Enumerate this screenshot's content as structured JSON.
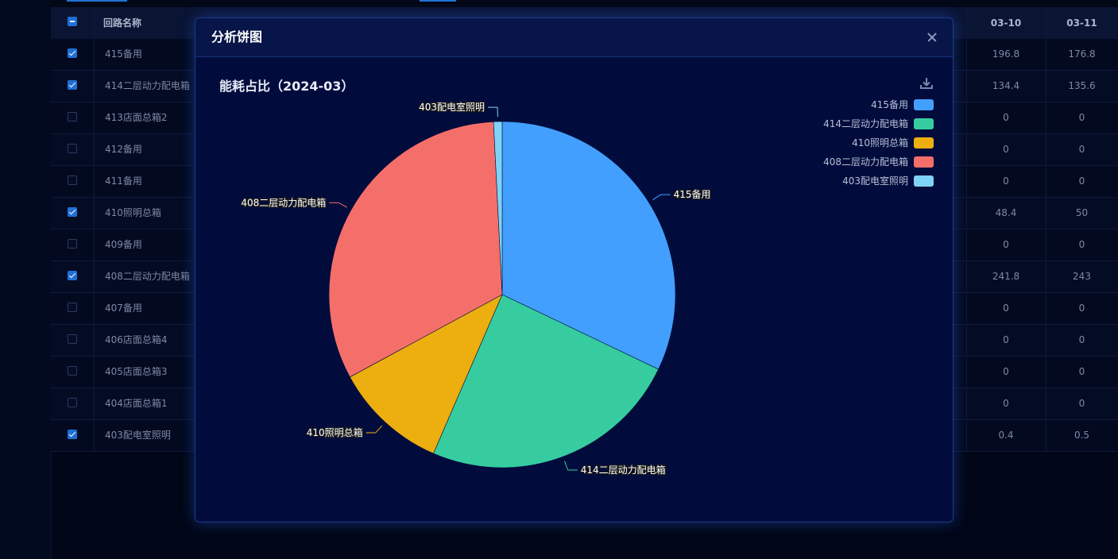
{
  "table": {
    "headers": {
      "name": "回路名称",
      "d10": "03-10",
      "d11": "03-11"
    },
    "rows": [
      {
        "checked": true,
        "name": "415备用",
        "d10": "196.8",
        "d11": "176.8"
      },
      {
        "checked": true,
        "name": "414二层动力配电箱",
        "d10": "134.4",
        "d11": "135.6"
      },
      {
        "checked": false,
        "name": "413店面总箱2",
        "d10": "0",
        "d11": "0"
      },
      {
        "checked": false,
        "name": "412备用",
        "d10": "0",
        "d11": "0"
      },
      {
        "checked": false,
        "name": "411备用",
        "d10": "0",
        "d11": "0"
      },
      {
        "checked": true,
        "name": "410照明总箱",
        "d10": "48.4",
        "d11": "50"
      },
      {
        "checked": false,
        "name": "409备用",
        "d10": "0",
        "d11": "0"
      },
      {
        "checked": true,
        "name": "408二层动力配电箱",
        "d10": "241.8",
        "d11": "243"
      },
      {
        "checked": false,
        "name": "407备用",
        "d10": "0",
        "d11": "0"
      },
      {
        "checked": false,
        "name": "406店面总箱4",
        "d10": "0",
        "d11": "0"
      },
      {
        "checked": false,
        "name": "405店面总箱3",
        "d10": "0",
        "d11": "0"
      },
      {
        "checked": false,
        "name": "404店面总箱1",
        "d10": "0",
        "d11": "0"
      },
      {
        "checked": true,
        "name": "403配电室照明",
        "d10": "0.4",
        "d11": "0.5"
      }
    ]
  },
  "modal": {
    "title": "分析饼图",
    "chart_title": "能耗占比（2024-03）"
  },
  "icons": {
    "close": "close-icon",
    "download": "download-icon"
  },
  "chart_data": {
    "type": "pie",
    "title": "能耗占比（2024-03）",
    "legend_position": "top-right",
    "series": [
      {
        "name": "415备用",
        "value": 32.1,
        "color": "#429ffd"
      },
      {
        "name": "414二层动力配电箱",
        "value": 24.4,
        "color": "#36cc9f"
      },
      {
        "name": "410照明总箱",
        "value": 10.6,
        "color": "#edae10"
      },
      {
        "name": "408二层动力配电箱",
        "value": 32.1,
        "color": "#f56f6a"
      },
      {
        "name": "403配电室照明",
        "value": 0.8,
        "color": "#7fd3f7"
      }
    ]
  }
}
